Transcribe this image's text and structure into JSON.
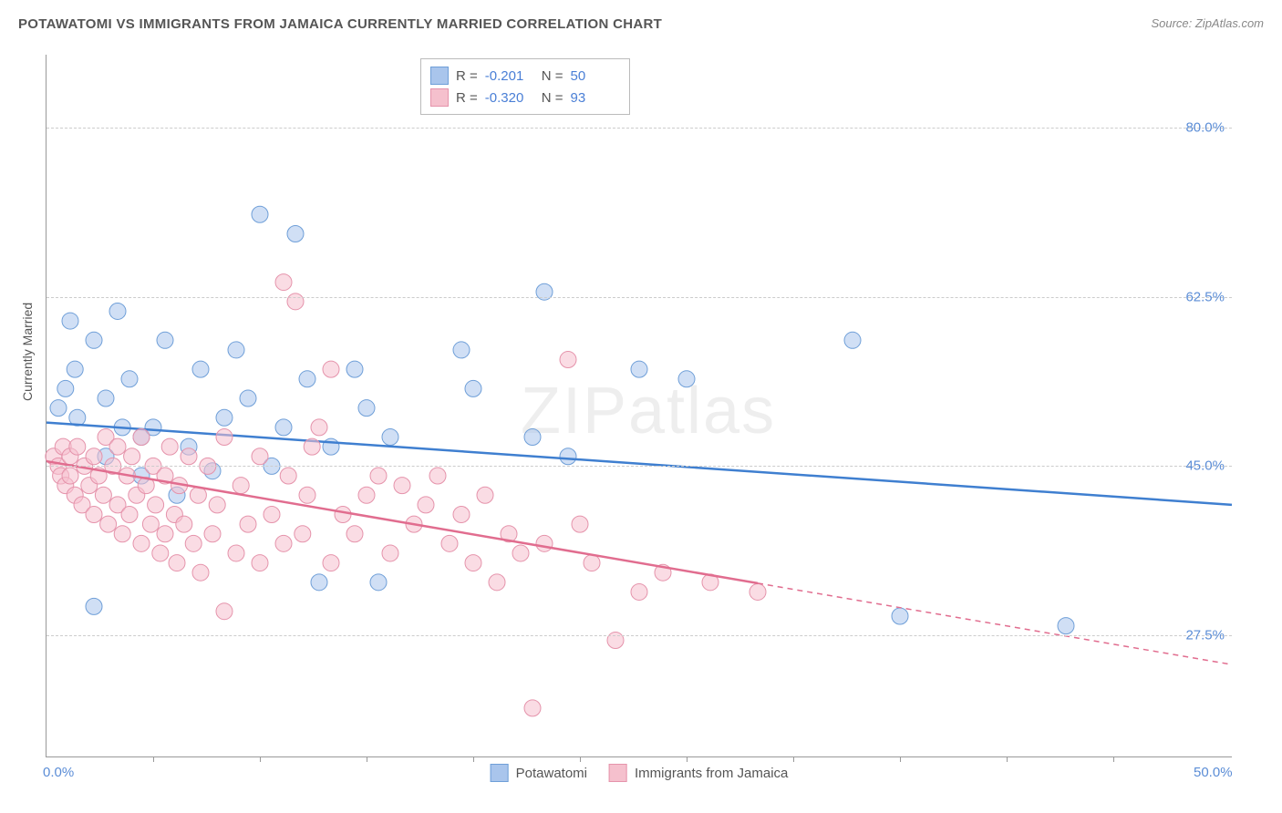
{
  "title": "POTAWATOMI VS IMMIGRANTS FROM JAMAICA CURRENTLY MARRIED CORRELATION CHART",
  "source": "Source: ZipAtlas.com",
  "watermark": "ZIPatlas",
  "ylabel": "Currently Married",
  "chart": {
    "type": "scatter",
    "xlim": [
      0,
      50
    ],
    "ylim": [
      15,
      87.5
    ],
    "x_ticks": [
      0,
      50
    ],
    "x_tick_labels": [
      "0.0%",
      "50.0%"
    ],
    "y_gridlines": [
      27.5,
      45.0,
      62.5,
      80.0
    ],
    "y_tick_labels": [
      "27.5%",
      "45.0%",
      "62.5%",
      "80.0%"
    ],
    "x_minor_ticks": [
      4.5,
      9,
      13.5,
      18,
      22.5,
      27,
      31.5,
      36,
      40.5,
      45
    ],
    "background_color": "#ffffff",
    "grid_color": "#cccccc",
    "marker_radius": 9,
    "marker_opacity": 0.55,
    "line_width": 2.5,
    "series": [
      {
        "name": "Potawatomi",
        "color_fill": "#a9c5ec",
        "color_stroke": "#6f9fd8",
        "line_color": "#3f7fd0",
        "R": "-0.201",
        "N": "50",
        "trend": {
          "x1": 0,
          "y1": 49.5,
          "x2": 50,
          "y2": 41.0,
          "solid_until": 50
        },
        "points": [
          [
            0.5,
            51
          ],
          [
            0.8,
            53
          ],
          [
            1.0,
            60
          ],
          [
            1.2,
            55
          ],
          [
            1.3,
            50
          ],
          [
            2.0,
            58
          ],
          [
            2.0,
            30.5
          ],
          [
            2.5,
            52
          ],
          [
            2.5,
            46
          ],
          [
            3.0,
            61
          ],
          [
            3.2,
            49
          ],
          [
            3.5,
            54
          ],
          [
            4.0,
            48
          ],
          [
            4.0,
            44
          ],
          [
            4.5,
            49
          ],
          [
            5.0,
            58
          ],
          [
            5.5,
            42
          ],
          [
            6.0,
            47
          ],
          [
            6.5,
            55
          ],
          [
            7.0,
            44.5
          ],
          [
            7.5,
            50
          ],
          [
            8.0,
            57
          ],
          [
            8.5,
            52
          ],
          [
            9.0,
            71
          ],
          [
            9.5,
            45
          ],
          [
            10.0,
            49
          ],
          [
            10.5,
            69
          ],
          [
            11.0,
            54
          ],
          [
            11.5,
            33
          ],
          [
            12.0,
            47
          ],
          [
            13.0,
            55
          ],
          [
            13.5,
            51
          ],
          [
            14.0,
            33
          ],
          [
            14.5,
            48
          ],
          [
            17.5,
            57
          ],
          [
            18.0,
            53
          ],
          [
            20.5,
            48
          ],
          [
            21.0,
            63
          ],
          [
            22.0,
            46
          ],
          [
            25.0,
            55
          ],
          [
            27.0,
            54
          ],
          [
            34.0,
            58
          ],
          [
            36.0,
            29.5
          ],
          [
            43.0,
            28.5
          ]
        ]
      },
      {
        "name": "Immigrants from Jamaica",
        "color_fill": "#f5c0cd",
        "color_stroke": "#e593ab",
        "line_color": "#e16d8f",
        "R": "-0.320",
        "N": "93",
        "trend": {
          "x1": 0,
          "y1": 45.5,
          "x2": 50,
          "y2": 24.5,
          "solid_until": 30
        },
        "points": [
          [
            0.3,
            46
          ],
          [
            0.5,
            45
          ],
          [
            0.6,
            44
          ],
          [
            0.7,
            47
          ],
          [
            0.8,
            43
          ],
          [
            1.0,
            46
          ],
          [
            1.0,
            44
          ],
          [
            1.2,
            42
          ],
          [
            1.3,
            47
          ],
          [
            1.5,
            41
          ],
          [
            1.6,
            45
          ],
          [
            1.8,
            43
          ],
          [
            2.0,
            40
          ],
          [
            2.0,
            46
          ],
          [
            2.2,
            44
          ],
          [
            2.4,
            42
          ],
          [
            2.5,
            48
          ],
          [
            2.6,
            39
          ],
          [
            2.8,
            45
          ],
          [
            3.0,
            41
          ],
          [
            3.0,
            47
          ],
          [
            3.2,
            38
          ],
          [
            3.4,
            44
          ],
          [
            3.5,
            40
          ],
          [
            3.6,
            46
          ],
          [
            3.8,
            42
          ],
          [
            4.0,
            37
          ],
          [
            4.0,
            48
          ],
          [
            4.2,
            43
          ],
          [
            4.4,
            39
          ],
          [
            4.5,
            45
          ],
          [
            4.6,
            41
          ],
          [
            4.8,
            36
          ],
          [
            5.0,
            44
          ],
          [
            5.0,
            38
          ],
          [
            5.2,
            47
          ],
          [
            5.4,
            40
          ],
          [
            5.5,
            35
          ],
          [
            5.6,
            43
          ],
          [
            5.8,
            39
          ],
          [
            6.0,
            46
          ],
          [
            6.2,
            37
          ],
          [
            6.4,
            42
          ],
          [
            6.5,
            34
          ],
          [
            6.8,
            45
          ],
          [
            7.0,
            38
          ],
          [
            7.2,
            41
          ],
          [
            7.5,
            30
          ],
          [
            7.5,
            48
          ],
          [
            8.0,
            36
          ],
          [
            8.2,
            43
          ],
          [
            8.5,
            39
          ],
          [
            9.0,
            35
          ],
          [
            9.0,
            46
          ],
          [
            9.5,
            40
          ],
          [
            10.0,
            37
          ],
          [
            10.0,
            64
          ],
          [
            10.2,
            44
          ],
          [
            10.5,
            62
          ],
          [
            10.8,
            38
          ],
          [
            11.0,
            42
          ],
          [
            11.2,
            47
          ],
          [
            11.5,
            49
          ],
          [
            12.0,
            35
          ],
          [
            12.0,
            55
          ],
          [
            12.5,
            40
          ],
          [
            13.0,
            38
          ],
          [
            13.5,
            42
          ],
          [
            14.0,
            44
          ],
          [
            14.5,
            36
          ],
          [
            15.0,
            43
          ],
          [
            15.5,
            39
          ],
          [
            16.0,
            41
          ],
          [
            16.5,
            44
          ],
          [
            17.0,
            37
          ],
          [
            17.5,
            40
          ],
          [
            18.0,
            35
          ],
          [
            18.5,
            42
          ],
          [
            19.0,
            33
          ],
          [
            19.5,
            38
          ],
          [
            20.0,
            36
          ],
          [
            20.5,
            20
          ],
          [
            21.0,
            37
          ],
          [
            22.0,
            56
          ],
          [
            22.5,
            39
          ],
          [
            23.0,
            35
          ],
          [
            24.0,
            27
          ],
          [
            25.0,
            32
          ],
          [
            26.0,
            34
          ],
          [
            28.0,
            33
          ],
          [
            30.0,
            32
          ]
        ]
      }
    ]
  }
}
